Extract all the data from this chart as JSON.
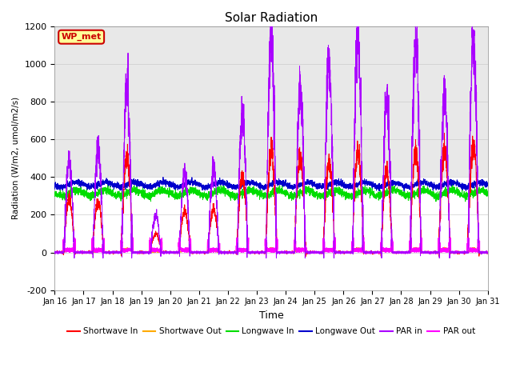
{
  "title": "Solar Radiation",
  "ylabel": "Radiation (W/m2, umol/m2/s)",
  "xlabel": "Time",
  "ylim": [
    -200,
    1200
  ],
  "yticks": [
    -200,
    0,
    200,
    400,
    600,
    800,
    1000,
    1200
  ],
  "days": 15,
  "xstart_day": 16,
  "legend_labels": [
    "Shortwave In",
    "Shortwave Out",
    "Longwave In",
    "Longwave Out",
    "PAR in",
    "PAR out"
  ],
  "legend_colors": [
    "#ff0000",
    "#ffaa00",
    "#00dd00",
    "#0000cc",
    "#aa00ff",
    "#ff00ff"
  ],
  "annotation_text": "WP_met",
  "annotation_color": "#cc0000",
  "annotation_bg": "#ffff99",
  "plot_bg_lower": "#ffffff",
  "plot_bg_upper": "#e8e8e8",
  "fig_bg": "#ffffff"
}
